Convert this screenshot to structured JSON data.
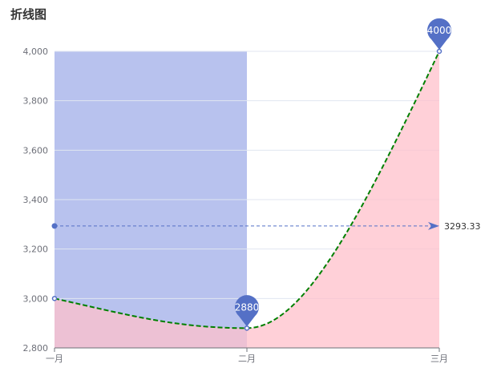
{
  "title": "折线图",
  "chart_data": {
    "type": "line",
    "title": "折线图",
    "categories": [
      "一月",
      "二月",
      "三月"
    ],
    "series": [
      {
        "values": [
          3000,
          2880,
          4000
        ],
        "smooth": true,
        "line_style": "dashed",
        "color": "#008000"
      }
    ],
    "ylim": [
      2800,
      4000
    ],
    "yticks": [
      2800,
      3000,
      3200,
      3400,
      3600,
      3800,
      4000
    ],
    "ytick_labels": [
      "2,800",
      "3,000",
      "3,200",
      "3,400",
      "3,600",
      "3,800",
      "4,000"
    ],
    "grid": true,
    "mark_points": [
      {
        "category": "二月",
        "value": 2880,
        "label": "2880"
      },
      {
        "category": "三月",
        "value": 4000,
        "label": "4000"
      }
    ],
    "mark_line": {
      "type": "average",
      "value": 3293.33,
      "label": "3293.33",
      "color": "#5470c6"
    },
    "mark_area": {
      "from": "一月",
      "to": "二月",
      "color": "#b8c2ee"
    },
    "area_fill": {
      "color": "#ffc0cb"
    },
    "colors": {
      "axis": "#6e7079",
      "grid": "#e0e6f1",
      "pin": "#5470c6"
    }
  }
}
